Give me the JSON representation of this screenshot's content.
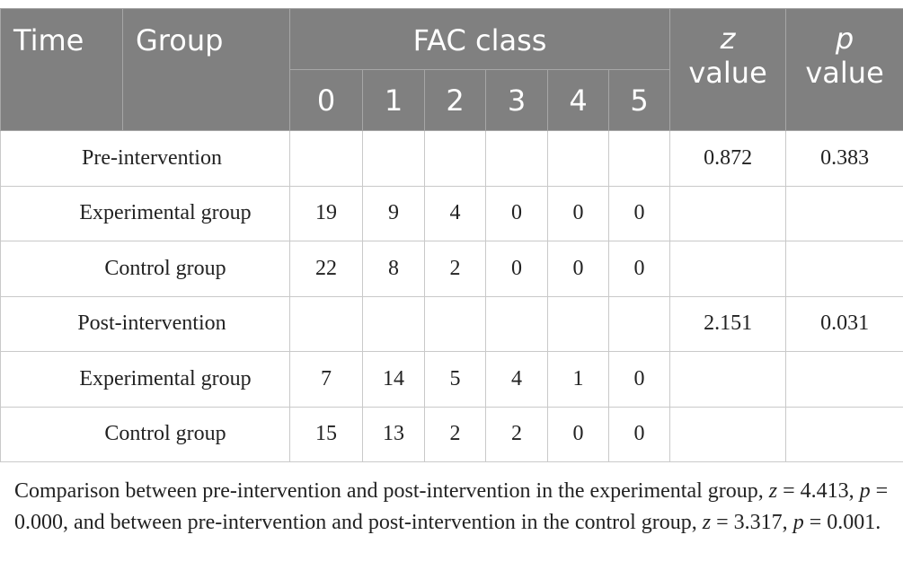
{
  "header": {
    "time": "Time",
    "group": "Group",
    "fac_class": "FAC class",
    "classes": [
      "0",
      "1",
      "2",
      "3",
      "4",
      "5"
    ],
    "z_symbol": "z",
    "p_symbol": "p",
    "value_word": "value"
  },
  "rows": [
    {
      "label": "Pre-intervention",
      "z": "0.872",
      "p": "0.383"
    },
    {
      "label": "Experimental group",
      "c0": "19",
      "c1": "9",
      "c2": "4",
      "c3": "0",
      "c4": "0",
      "c5": "0"
    },
    {
      "label": "Control group",
      "c0": "22",
      "c1": "8",
      "c2": "2",
      "c3": "0",
      "c4": "0",
      "c5": "0"
    },
    {
      "label": "Post-intervention",
      "z": "2.151",
      "p": "0.031"
    },
    {
      "label": "Experimental group",
      "c0": "7",
      "c1": "14",
      "c2": "5",
      "c3": "4",
      "c4": "1",
      "c5": "0"
    },
    {
      "label": "Control group",
      "c0": "15",
      "c1": "13",
      "c2": "2",
      "c3": "2",
      "c4": "0",
      "c5": "0"
    }
  ],
  "footnote": {
    "part1": "Comparison between pre-intervention and post-intervention in the experimental group, ",
    "z1_sym": "z",
    "eq1": " = 4.413, ",
    "p1_sym": "p",
    "eq2": " = 0.000, and between pre-intervention and post-intervention in the control group, ",
    "z2_sym": "z",
    "eq3": " = 3.317, ",
    "p2_sym": "p",
    "eq4": " = 0.001."
  }
}
